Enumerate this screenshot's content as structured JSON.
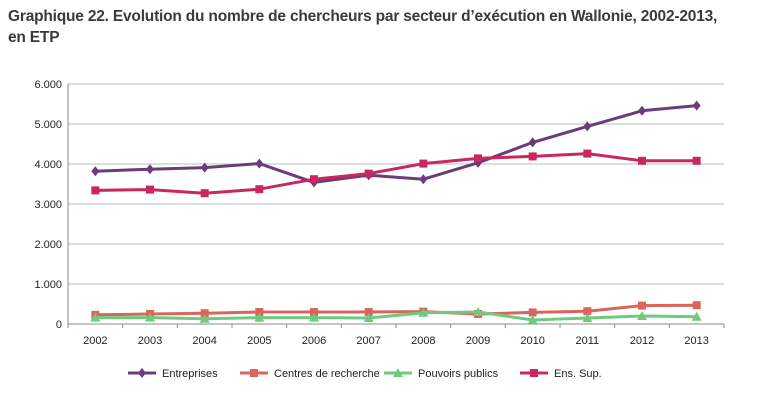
{
  "title_line1": "Graphique 22. Evolution du nombre de chercheurs par secteur d’exécution en Wallonie, 2002-2013,",
  "title_line2": "en ETP",
  "chart_data": {
    "type": "line",
    "categories": [
      "2002",
      "2003",
      "2004",
      "2005",
      "2006",
      "2007",
      "2008",
      "2009",
      "2010",
      "2011",
      "2012",
      "2013"
    ],
    "ylim": [
      0,
      6000
    ],
    "yticks": [
      0,
      1000,
      2000,
      3000,
      4000,
      5000,
      6000
    ],
    "ytick_labels": [
      "0",
      "1.000",
      "2.000",
      "3.000",
      "4.000",
      "5.000",
      "6.000"
    ],
    "grid": true,
    "legend_position": "bottom",
    "series": [
      {
        "name": "Entreprises",
        "color": "#6c3c78",
        "marker": "diamond",
        "values": [
          3820,
          3870,
          3910,
          4010,
          3540,
          3720,
          3620,
          4030,
          4540,
          4940,
          5330,
          5460
        ]
      },
      {
        "name": "Centres de recherche",
        "color": "#d9655c",
        "marker": "square",
        "values": [
          230,
          250,
          270,
          300,
          300,
          300,
          310,
          250,
          290,
          320,
          460,
          470
        ]
      },
      {
        "name": "Pouvoirs publics",
        "color": "#6ecb7e",
        "marker": "triangle",
        "values": [
          160,
          160,
          130,
          160,
          160,
          150,
          280,
          300,
          100,
          150,
          200,
          180
        ]
      },
      {
        "name": "Ens. Sup.",
        "color": "#c8285f",
        "marker": "square",
        "values": [
          3340,
          3360,
          3270,
          3370,
          3620,
          3760,
          4010,
          4140,
          4190,
          4260,
          4080,
          4080
        ]
      }
    ]
  }
}
